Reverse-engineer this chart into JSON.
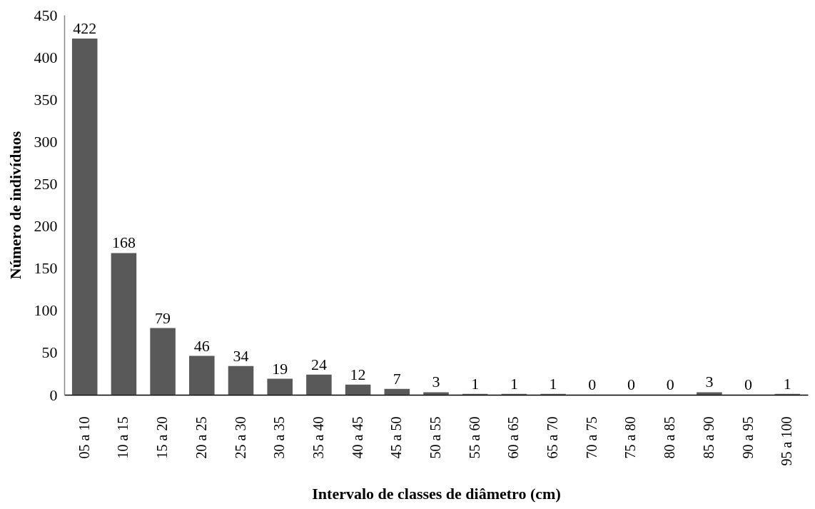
{
  "chart_data": {
    "type": "bar",
    "xlabel": "Intervalo de classes de diâmetro (cm)",
    "ylabel": "Número de indivíduos",
    "categories": [
      "05 a 10",
      "10 a 15",
      "15 a 20",
      "20 a 25",
      "25 a 30",
      "30 a 35",
      "35 a 40",
      "40 a 45",
      "45 a 50",
      "50 a 55",
      "55 a 60",
      "60 a 65",
      "65 a 70",
      "70 a 75",
      "75 a 80",
      "80 a 85",
      "85 a 90",
      "90 a 95",
      "95 a 100"
    ],
    "values": [
      422,
      168,
      79,
      46,
      34,
      19,
      24,
      12,
      7,
      3,
      1,
      1,
      1,
      0,
      0,
      0,
      3,
      0,
      1
    ],
    "color": "#595959",
    "ylim": [
      0,
      450
    ],
    "yticks": [
      0,
      50,
      100,
      150,
      200,
      250,
      300,
      350,
      400,
      450
    ],
    "grid": false,
    "data_labels": true
  }
}
